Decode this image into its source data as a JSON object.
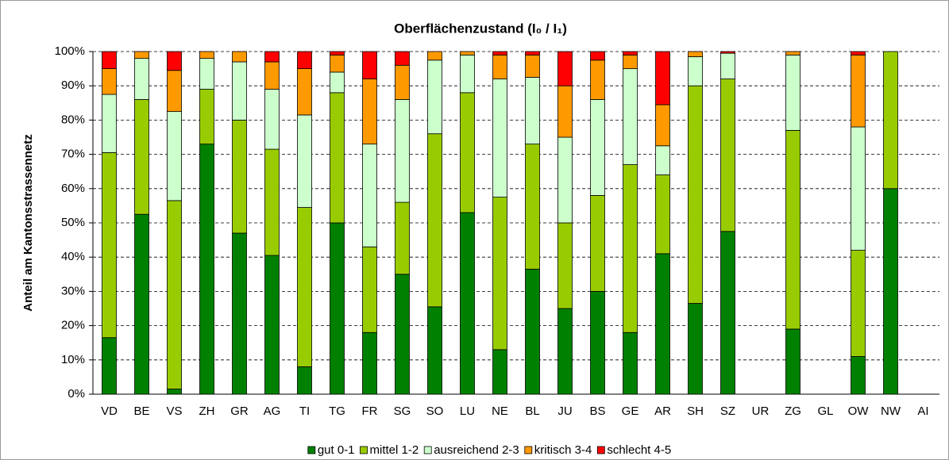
{
  "chart_data": {
    "type": "stacked_bar",
    "title": "Oberflächenzustand (I₀ / I₁)",
    "y_label": "Anteil am Kantonsstrassennetz",
    "categories": [
      "VD",
      "BE",
      "VS",
      "ZH",
      "GR",
      "AG",
      "TI",
      "TG",
      "FR",
      "SG",
      "SO",
      "LU",
      "NE",
      "BL",
      "JU",
      "BS",
      "GE",
      "AR",
      "SH",
      "SZ",
      "UR",
      "ZG",
      "GL",
      "OW",
      "NW",
      "AI"
    ],
    "series": [
      {
        "name": "gut 0-1",
        "color": "#008000",
        "values": [
          16.5,
          52.5,
          1.5,
          73,
          47,
          40.5,
          8,
          50,
          18,
          35,
          25.5,
          53,
          13,
          36.5,
          25,
          30,
          18,
          41,
          26.5,
          47.5,
          null,
          19,
          null,
          11,
          60,
          null
        ]
      },
      {
        "name": "mittel 1-2",
        "color": "#99cc00",
        "values": [
          54,
          33.5,
          55,
          16,
          33,
          31,
          46.5,
          38,
          25,
          21,
          50.5,
          35,
          44.5,
          36.5,
          25,
          28,
          49,
          23,
          63.5,
          44.5,
          null,
          58,
          null,
          31,
          40,
          null
        ]
      },
      {
        "name": "ausreichend 2-3",
        "color": "#ccffcc",
        "values": [
          17,
          12,
          26,
          9,
          17,
          17.5,
          27,
          6,
          30,
          30,
          21.5,
          11,
          34.5,
          19.5,
          25,
          28,
          28,
          8.5,
          8.5,
          7.5,
          null,
          22,
          null,
          36,
          0,
          null
        ]
      },
      {
        "name": "kritisch 3-4",
        "color": "#ff9900",
        "values": [
          7.5,
          2,
          12,
          2,
          3,
          8,
          13.5,
          5,
          19,
          10,
          2.5,
          1,
          7,
          6.5,
          15,
          11.5,
          4,
          12,
          1.5,
          0,
          null,
          1,
          null,
          21,
          0,
          null
        ]
      },
      {
        "name": "schlecht 4-5",
        "color": "#ff0000",
        "values": [
          5,
          0,
          5.5,
          0,
          0,
          3,
          5,
          1,
          8,
          4,
          0,
          0,
          1,
          1,
          10,
          2.5,
          1,
          15.5,
          0,
          0.5,
          null,
          0,
          null,
          1,
          0,
          null
        ]
      }
    ],
    "ylim": [
      0,
      100
    ],
    "yticks": [
      {
        "value": 0,
        "label": "0%"
      },
      {
        "value": 10,
        "label": "10%"
      },
      {
        "value": 20,
        "label": "20%"
      },
      {
        "value": 30,
        "label": "30%"
      },
      {
        "value": 40,
        "label": "40%"
      },
      {
        "value": 50,
        "label": "50%"
      },
      {
        "value": 60,
        "label": "60%"
      },
      {
        "value": 70,
        "label": "70%"
      },
      {
        "value": 80,
        "label": "80%"
      },
      {
        "value": 90,
        "label": "90%"
      },
      {
        "value": 100,
        "label": "100%"
      }
    ],
    "grid": true,
    "legend": "bottom"
  }
}
